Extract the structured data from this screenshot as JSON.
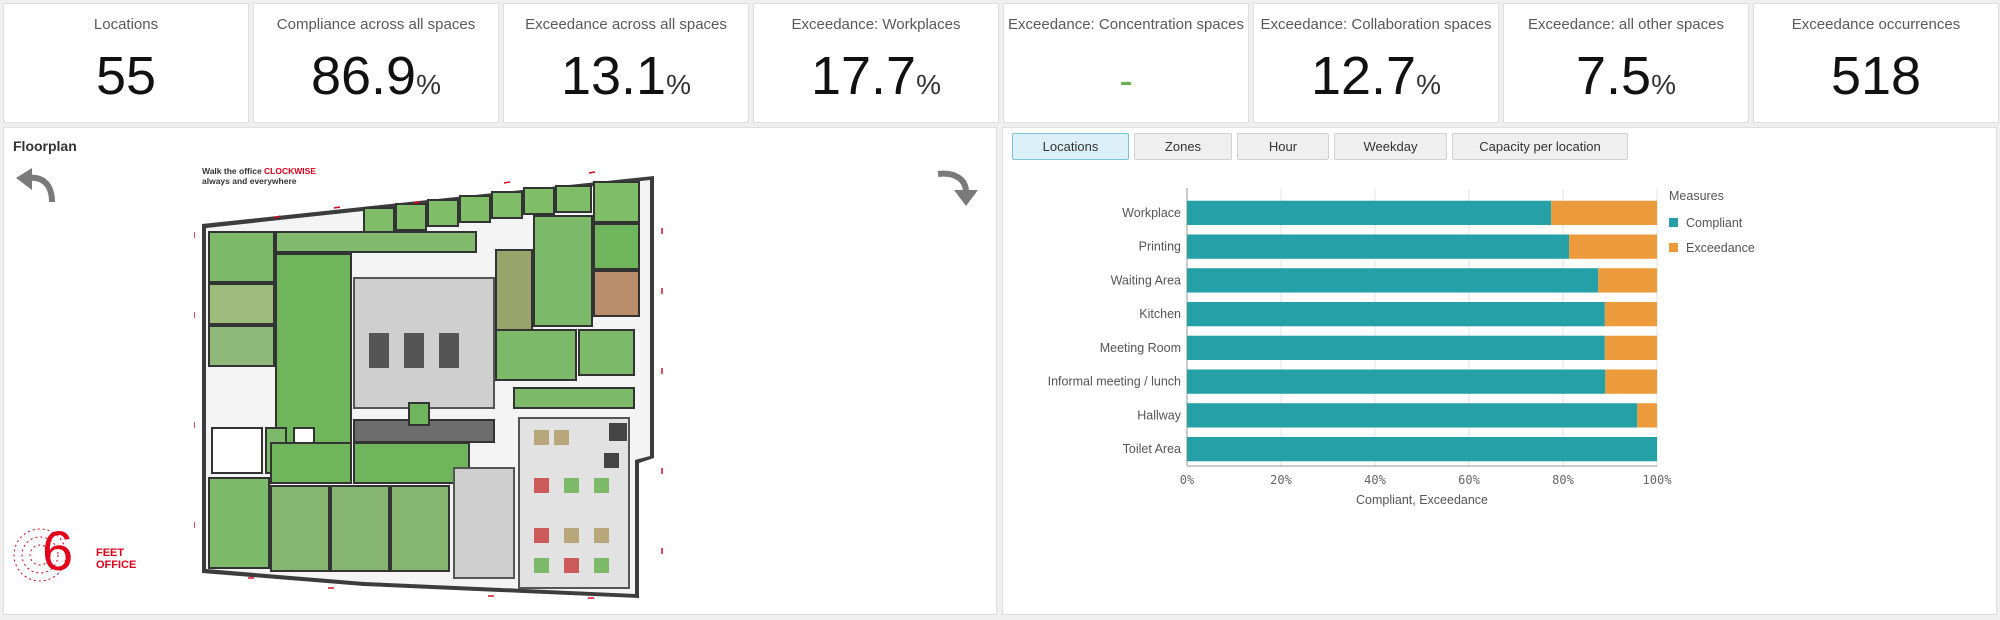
{
  "kpis": [
    {
      "title": "Locations",
      "value": "55",
      "unit": ""
    },
    {
      "title": "Compliance across all spaces",
      "value": "86.9",
      "unit": "%"
    },
    {
      "title": "Exceedance across all spaces",
      "value": "13.1",
      "unit": "%"
    },
    {
      "title": "Exceedance: Workplaces",
      "value": "17.7",
      "unit": "%"
    },
    {
      "title": "Exceedance: Concentration spaces",
      "value": "-",
      "unit": ""
    },
    {
      "title": "Exceedance: Collaboration  spaces",
      "value": "12.7",
      "unit": "%"
    },
    {
      "title": "Exceedance: all other spaces",
      "value": "7.5",
      "unit": "%"
    },
    {
      "title": "Exceedance occurrences",
      "value": "518",
      "unit": ""
    }
  ],
  "floorplan": {
    "title": "Floorplan",
    "notice_line1": "Walk the office",
    "notice_highlight": "CLOCKWISE",
    "notice_line2": "always and everywhere",
    "logo_line1": "FEET",
    "logo_line2": "OFFICE",
    "logo_digit": "6",
    "arrow_left_icon": "rotate-counterclockwise-icon",
    "arrow_right_icon": "rotate-clockwise-icon"
  },
  "tabs": [
    {
      "label": "Locations",
      "active": true
    },
    {
      "label": "Zones",
      "active": false
    },
    {
      "label": "Hour",
      "active": false
    },
    {
      "label": "Weekday",
      "active": false
    },
    {
      "label": "Capacity per location",
      "active": false
    }
  ],
  "colors": {
    "compliant": "#26a0a7",
    "exceedance": "#eb9a3c",
    "dash_green": "#6ab150",
    "brand_red": "#e2001a"
  },
  "chart_data": {
    "type": "bar",
    "orientation": "horizontal",
    "stacked": "percent",
    "categories": [
      "Workplace",
      "Printing",
      "Waiting Area",
      "Kitchen",
      "Meeting Room",
      "Informal meeting / lunch",
      "Hallway",
      "Toilet Area"
    ],
    "series": [
      {
        "name": "Compliant",
        "values": [
          77.5,
          81.3,
          87.5,
          88.9,
          88.9,
          89.0,
          95.8,
          100
        ]
      },
      {
        "name": "Exceedance",
        "values": [
          22.5,
          18.7,
          12.5,
          11.1,
          11.1,
          11.0,
          4.2,
          0
        ]
      }
    ],
    "xticks": [
      "0%",
      "20%",
      "40%",
      "60%",
      "80%",
      "100%"
    ],
    "xlim": [
      0,
      100
    ],
    "xlabel": "Compliant, Exceedance",
    "legend_title": "Measures",
    "legend_position": "right",
    "grid": true
  }
}
